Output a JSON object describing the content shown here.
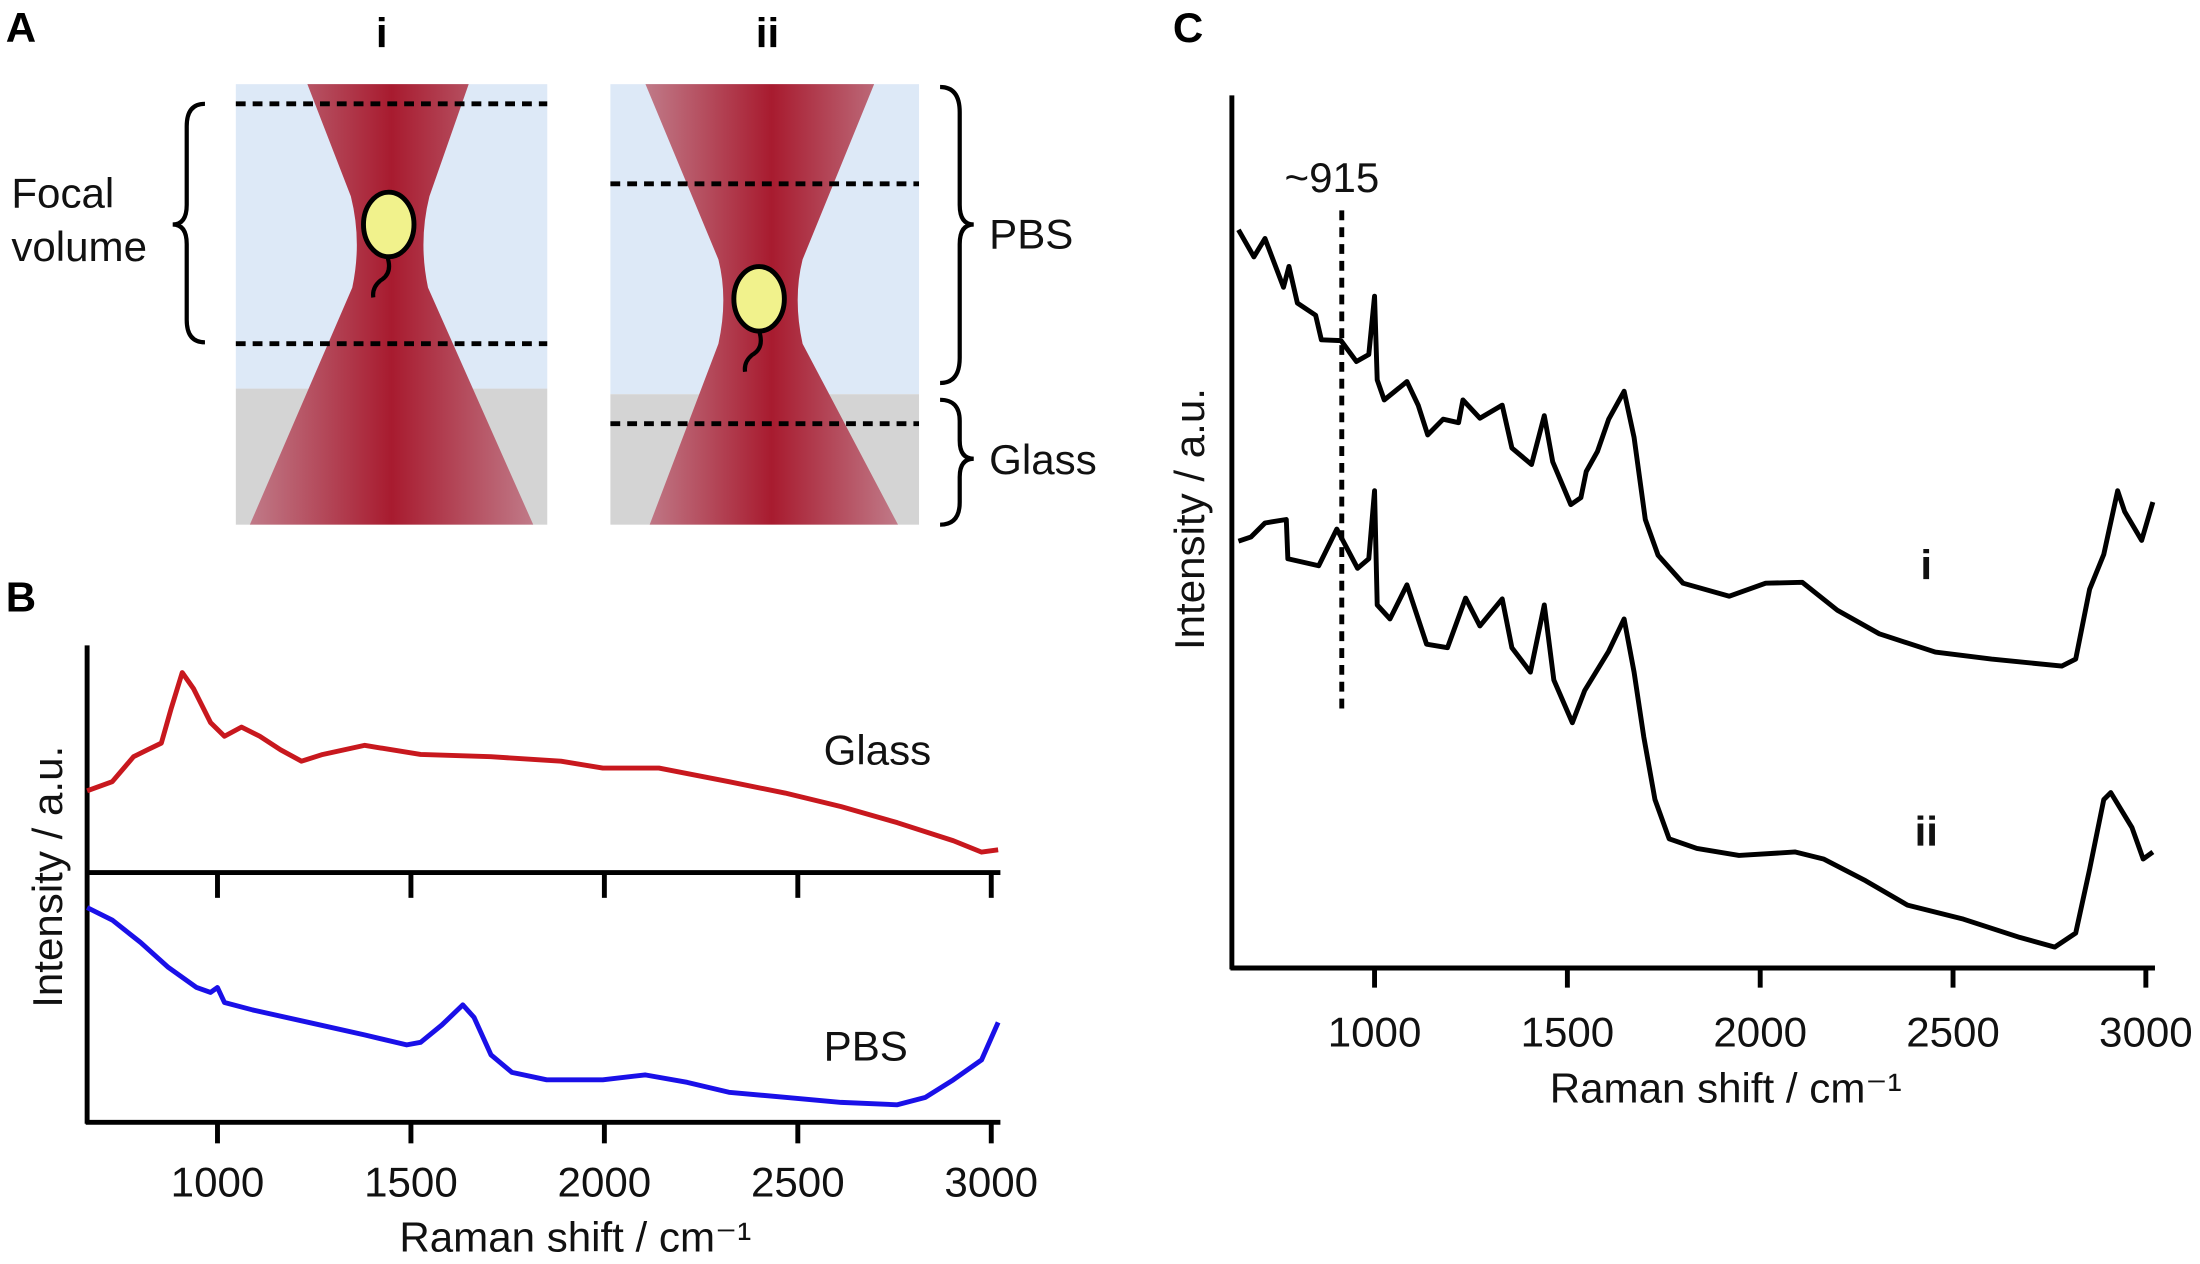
{
  "panel_labels": {
    "a": "A",
    "b": "B",
    "c": "C"
  },
  "diagram": {
    "column_labels": [
      "i",
      "ii"
    ],
    "focal_label_line1": "Focal",
    "focal_label_line2": "volume",
    "pbs_label": "PBS",
    "glass_label": "Glass",
    "colors": {
      "medium": "#dde9f7",
      "glass": "#d4d4d4",
      "beam": "#a81b2f",
      "cell": "#f1f28c"
    }
  },
  "chart_data": [
    {
      "panel": "B",
      "type": "line",
      "xlabel": "Raman shift / cm⁻¹",
      "ylabel": "Intensity / a.u.",
      "xlim": [
        663,
        3020
      ],
      "xticks": [
        1000,
        1500,
        2000,
        2500,
        3000
      ],
      "xtick_labels": [
        "1000",
        "1500",
        "2000",
        "2500",
        "3000"
      ],
      "layout": "stacked",
      "series": [
        {
          "name": "Glass",
          "color": "#c8181e",
          "ylim": [
            0,
            100
          ],
          "points": [
            [
              663,
              36
            ],
            [
              728,
              40
            ],
            [
              783,
              51
            ],
            [
              819,
              54
            ],
            [
              855,
              57
            ],
            [
              880,
              72
            ],
            [
              909,
              88
            ],
            [
              938,
              81
            ],
            [
              982,
              66
            ],
            [
              1018,
              60
            ],
            [
              1062,
              64
            ],
            [
              1109,
              60
            ],
            [
              1163,
              54
            ],
            [
              1217,
              49
            ],
            [
              1272,
              52
            ],
            [
              1380,
              56
            ],
            [
              1525,
              52
            ],
            [
              1707,
              51
            ],
            [
              1888,
              49
            ],
            [
              1996,
              46
            ],
            [
              2141,
              46
            ],
            [
              2322,
              40
            ],
            [
              2467,
              35
            ],
            [
              2612,
              29
            ],
            [
              2757,
              22
            ],
            [
              2902,
              14
            ],
            [
              2975,
              9
            ],
            [
              3018,
              10
            ]
          ]
        },
        {
          "name": "PBS",
          "color": "#1a10e8",
          "ylim": [
            0,
            100
          ],
          "points": [
            [
              663,
              86
            ],
            [
              728,
              81
            ],
            [
              801,
              72
            ],
            [
              873,
              62
            ],
            [
              946,
              54
            ],
            [
              982,
              52
            ],
            [
              1000,
              54
            ],
            [
              1018,
              48
            ],
            [
              1091,
              45
            ],
            [
              1236,
              40
            ],
            [
              1380,
              35
            ],
            [
              1489,
              31
            ],
            [
              1525,
              32
            ],
            [
              1580,
              39
            ],
            [
              1634,
              47
            ],
            [
              1663,
              42
            ],
            [
              1707,
              27
            ],
            [
              1761,
              20
            ],
            [
              1851,
              17
            ],
            [
              1996,
              17
            ],
            [
              2105,
              19
            ],
            [
              2214,
              16
            ],
            [
              2322,
              12
            ],
            [
              2467,
              10
            ],
            [
              2612,
              8
            ],
            [
              2757,
              7
            ],
            [
              2830,
              10
            ],
            [
              2902,
              17
            ],
            [
              2975,
              25
            ],
            [
              3018,
              40
            ]
          ]
        }
      ]
    },
    {
      "panel": "C",
      "type": "line",
      "xlabel": "Raman shift / cm⁻¹",
      "ylabel": "Intensity / a.u.",
      "xlim": [
        630,
        3020
      ],
      "ylim": [
        0,
        100
      ],
      "xticks": [
        1000,
        1500,
        2000,
        2500,
        3000
      ],
      "xtick_labels": [
        "1000",
        "1500",
        "2000",
        "2500",
        "3000"
      ],
      "annotation": {
        "text": "~915",
        "x": 915
      },
      "series": [
        {
          "name": "i",
          "color": "#000000",
          "points": [
            [
              647,
              84.6
            ],
            [
              687,
              81.5
            ],
            [
              716,
              83.6
            ],
            [
              764,
              78.0
            ],
            [
              778,
              80.4
            ],
            [
              800,
              76.2
            ],
            [
              847,
              74.8
            ],
            [
              862,
              72.0
            ],
            [
              913,
              71.9
            ],
            [
              953,
              69.5
            ],
            [
              985,
              70.3
            ],
            [
              1000,
              77.0
            ],
            [
              1007,
              67.4
            ],
            [
              1025,
              65.1
            ],
            [
              1084,
              67.2
            ],
            [
              1113,
              64.5
            ],
            [
              1138,
              61.1
            ],
            [
              1178,
              62.9
            ],
            [
              1218,
              62.5
            ],
            [
              1229,
              65.1
            ],
            [
              1273,
              63.0
            ],
            [
              1331,
              64.5
            ],
            [
              1356,
              59.6
            ],
            [
              1407,
              57.7
            ],
            [
              1440,
              63.3
            ],
            [
              1462,
              58.0
            ],
            [
              1509,
              53.1
            ],
            [
              1535,
              53.9
            ],
            [
              1549,
              56.9
            ],
            [
              1578,
              59.2
            ],
            [
              1607,
              62.9
            ],
            [
              1647,
              66.1
            ],
            [
              1673,
              60.8
            ],
            [
              1702,
              51.4
            ],
            [
              1735,
              47.3
            ],
            [
              1800,
              44.1
            ],
            [
              1920,
              42.6
            ],
            [
              2014,
              44.1
            ],
            [
              2109,
              44.2
            ],
            [
              2200,
              41.0
            ],
            [
              2309,
              38.3
            ],
            [
              2454,
              36.2
            ],
            [
              2600,
              35.4
            ],
            [
              2782,
              34.6
            ],
            [
              2818,
              35.4
            ],
            [
              2854,
              43.4
            ],
            [
              2891,
              47.4
            ],
            [
              2927,
              54.7
            ],
            [
              2945,
              52.3
            ],
            [
              2989,
              49.0
            ],
            [
              3018,
              53.4
            ]
          ]
        },
        {
          "name": "ii",
          "color": "#000000",
          "points": [
            [
              647,
              48.9
            ],
            [
              680,
              49.4
            ],
            [
              716,
              51.0
            ],
            [
              771,
              51.4
            ],
            [
              775,
              46.9
            ],
            [
              855,
              46.1
            ],
            [
              902,
              50.3
            ],
            [
              956,
              45.8
            ],
            [
              985,
              46.9
            ],
            [
              1000,
              54.7
            ],
            [
              1007,
              41.6
            ],
            [
              1040,
              40.0
            ],
            [
              1084,
              43.9
            ],
            [
              1135,
              37.1
            ],
            [
              1189,
              36.7
            ],
            [
              1236,
              42.4
            ],
            [
              1273,
              39.2
            ],
            [
              1331,
              42.3
            ],
            [
              1356,
              36.7
            ],
            [
              1404,
              33.9
            ],
            [
              1440,
              41.6
            ],
            [
              1465,
              33.0
            ],
            [
              1513,
              28.1
            ],
            [
              1545,
              31.8
            ],
            [
              1607,
              36.3
            ],
            [
              1647,
              40.0
            ],
            [
              1673,
              33.9
            ],
            [
              1698,
              26.5
            ],
            [
              1727,
              19.3
            ],
            [
              1764,
              14.8
            ],
            [
              1836,
              13.7
            ],
            [
              1945,
              12.9
            ],
            [
              2091,
              13.3
            ],
            [
              2164,
              12.5
            ],
            [
              2273,
              10.0
            ],
            [
              2382,
              7.2
            ],
            [
              2527,
              5.6
            ],
            [
              2673,
              3.5
            ],
            [
              2764,
              2.4
            ],
            [
              2818,
              4.0
            ],
            [
              2854,
              11.3
            ],
            [
              2891,
              19.3
            ],
            [
              2909,
              20.1
            ],
            [
              2964,
              16.1
            ],
            [
              2993,
              12.5
            ],
            [
              3018,
              13.3
            ]
          ]
        }
      ]
    }
  ]
}
